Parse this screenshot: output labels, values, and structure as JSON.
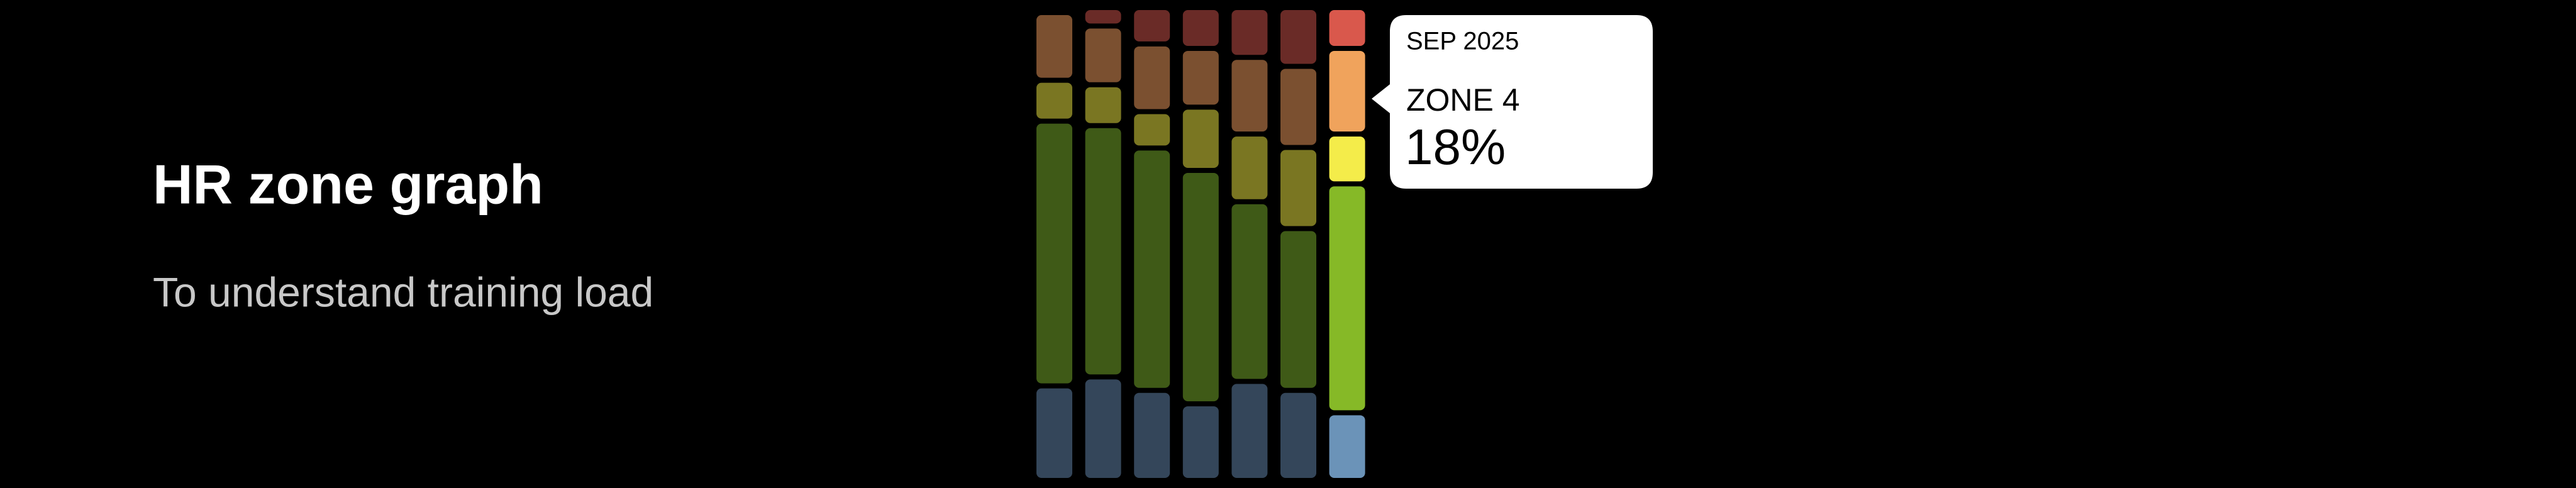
{
  "title": "HR zone graph",
  "subtitle": "To understand training load",
  "chart_data": {
    "type": "stacked-bar",
    "categories": [
      null,
      null,
      null,
      null,
      null,
      null,
      null
    ],
    "ylim": [
      0,
      100
    ],
    "highlight_index": 6,
    "series": [
      {
        "color": "#34465a",
        "highlight_color": "#6b93b8",
        "values": [
          20,
          22,
          19,
          16,
          21,
          19,
          14
        ]
      },
      {
        "color": "#3f5a17",
        "highlight_color": "#86b927",
        "values": [
          58,
          55,
          53,
          51,
          39,
          35,
          50
        ]
      },
      {
        "color": "#7a7622",
        "highlight_color": "#f4ec4a",
        "values": [
          8,
          8,
          7,
          13,
          14,
          17,
          10
        ]
      },
      {
        "color": "#7b5030",
        "highlight_color": "#f0a35c",
        "values": [
          14,
          12,
          14,
          12,
          16,
          17,
          18
        ]
      },
      {
        "color": "#6a2b27",
        "highlight_color": "#d9584c",
        "values": [
          0,
          3,
          7,
          8,
          10,
          12,
          8
        ]
      }
    ],
    "tooltip": {
      "category_index": 6,
      "series_index": 3,
      "category_label": "SEP 2025",
      "series_label": "ZONE 4",
      "value_label": "18%"
    }
  }
}
